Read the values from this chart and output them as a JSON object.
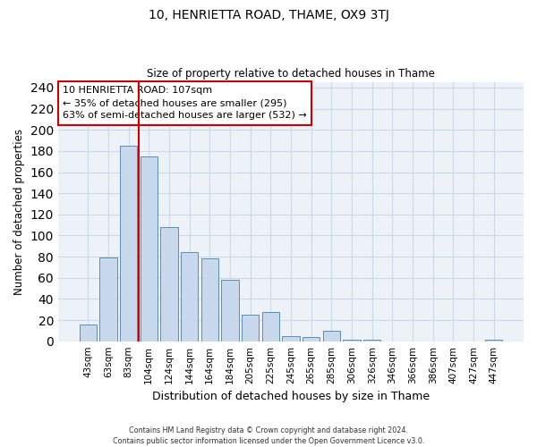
{
  "title": "10, HENRIETTA ROAD, THAME, OX9 3TJ",
  "subtitle": "Size of property relative to detached houses in Thame",
  "xlabel": "Distribution of detached houses by size in Thame",
  "ylabel": "Number of detached properties",
  "bar_labels": [
    "43sqm",
    "63sqm",
    "83sqm",
    "104sqm",
    "124sqm",
    "144sqm",
    "164sqm",
    "184sqm",
    "205sqm",
    "225sqm",
    "245sqm",
    "265sqm",
    "285sqm",
    "306sqm",
    "326sqm",
    "346sqm",
    "366sqm",
    "386sqm",
    "407sqm",
    "427sqm",
    "447sqm"
  ],
  "bar_values": [
    16,
    79,
    185,
    175,
    108,
    84,
    78,
    58,
    25,
    28,
    5,
    4,
    10,
    1,
    1,
    0,
    0,
    0,
    0,
    0,
    1
  ],
  "bar_color": "#c8d9ee",
  "bar_edge_color": "#5b8db8",
  "reference_line_color": "#cc0000",
  "annotation_title": "10 HENRIETTA ROAD: 107sqm",
  "annotation_line1": "← 35% of detached houses are smaller (295)",
  "annotation_line2": "63% of semi-detached houses are larger (532) →",
  "annotation_box_color": "#ffffff",
  "annotation_box_edge_color": "#cc0000",
  "ylim": [
    0,
    245
  ],
  "yticks": [
    0,
    20,
    40,
    60,
    80,
    100,
    120,
    140,
    160,
    180,
    200,
    220,
    240
  ],
  "footer_line1": "Contains HM Land Registry data © Crown copyright and database right 2024.",
  "footer_line2": "Contains public sector information licensed under the Open Government Licence v3.0.",
  "grid_color": "#cdd8e6",
  "background_color": "#edf2f8"
}
